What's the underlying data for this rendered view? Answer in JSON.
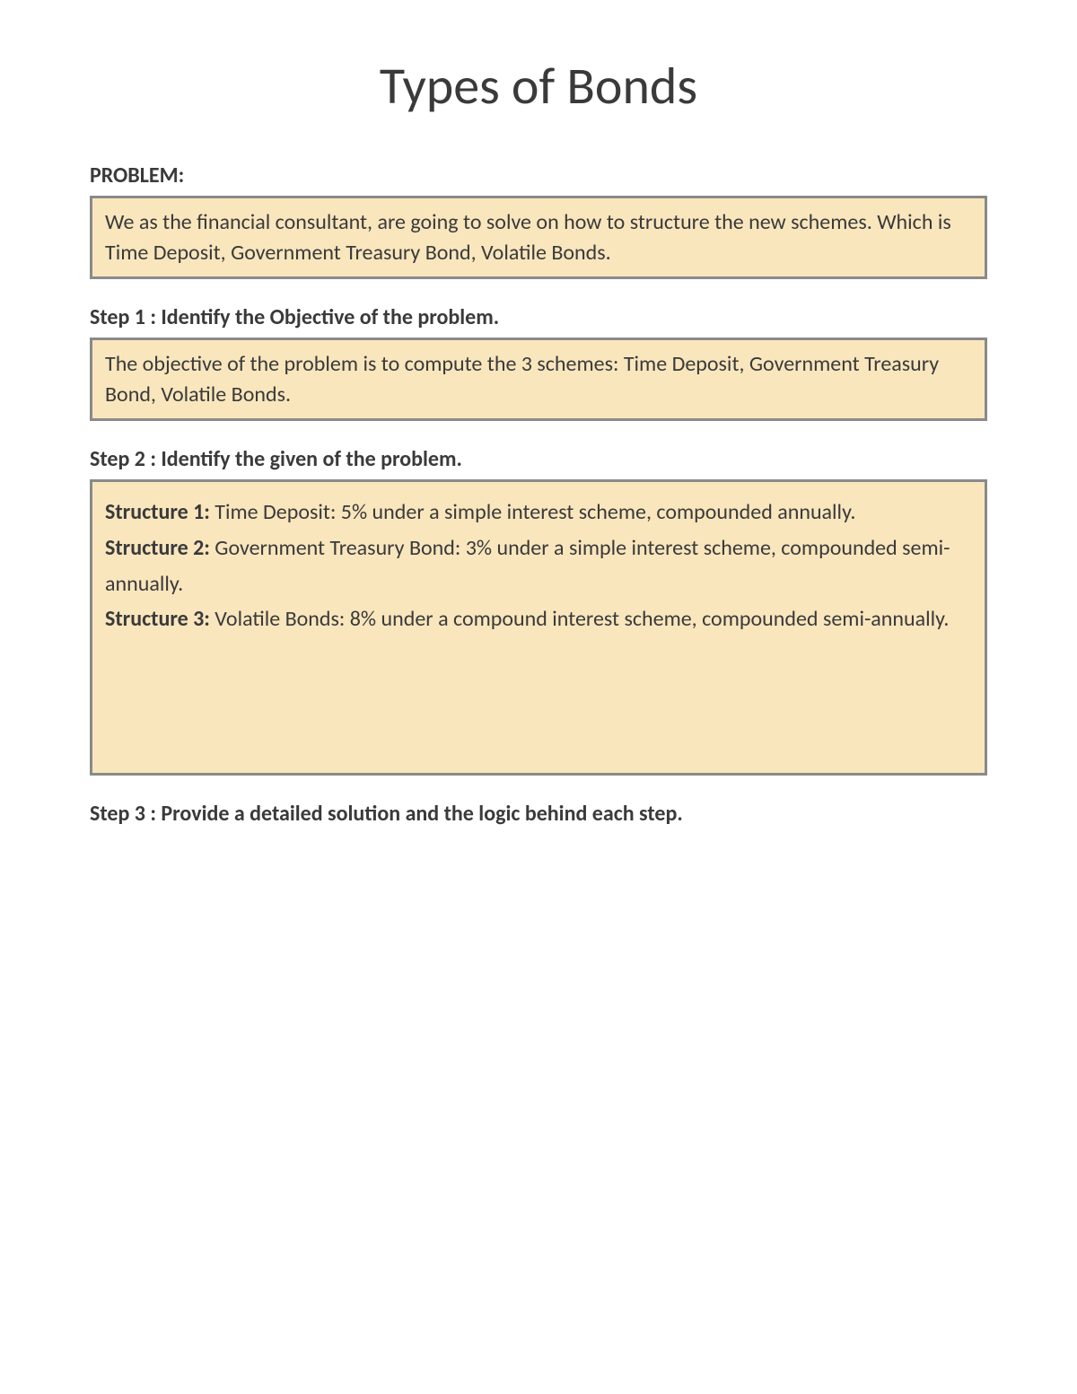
{
  "title": "Types of Bonds",
  "problem": {
    "heading": "PROBLEM:",
    "text": "We as the financial consultant, are going to solve on how to structure the new schemes.  Which is Time Deposit, Government Treasury Bond, Volatile Bonds."
  },
  "step1": {
    "heading": "Step 1 : Identify the Objective of the problem.",
    "text": "The objective of the problem is to compute the 3 schemes: Time Deposit, Government Treasury Bond, Volatile Bonds."
  },
  "step2": {
    "heading": "Step 2 : Identify the given of the problem.",
    "structures": {
      "s1_label": "Structure 1:",
      "s1_text": " Time Deposit: 5% under a simple interest scheme, compounded annually.",
      "s2_label": "Structure 2:",
      "s2_text": " Government Treasury Bond: 3% under a simple interest scheme, compounded semi-annually.",
      "s3_label": "Structure 3:",
      "s3_text": " Volatile Bonds: 8% under a compound interest scheme, compounded semi-annually."
    }
  },
  "step3": {
    "heading": "Step 3 : Provide a detailed solution and the logic behind each step."
  },
  "colors": {
    "box_bg": "#f9e6bd",
    "box_border": "#8a8a8a",
    "text": "#3a3a3a",
    "background": "#ffffff"
  },
  "typography": {
    "title_fontsize": 58,
    "heading_fontsize": 24,
    "body_fontsize": 24,
    "font_family": "Calibri"
  }
}
